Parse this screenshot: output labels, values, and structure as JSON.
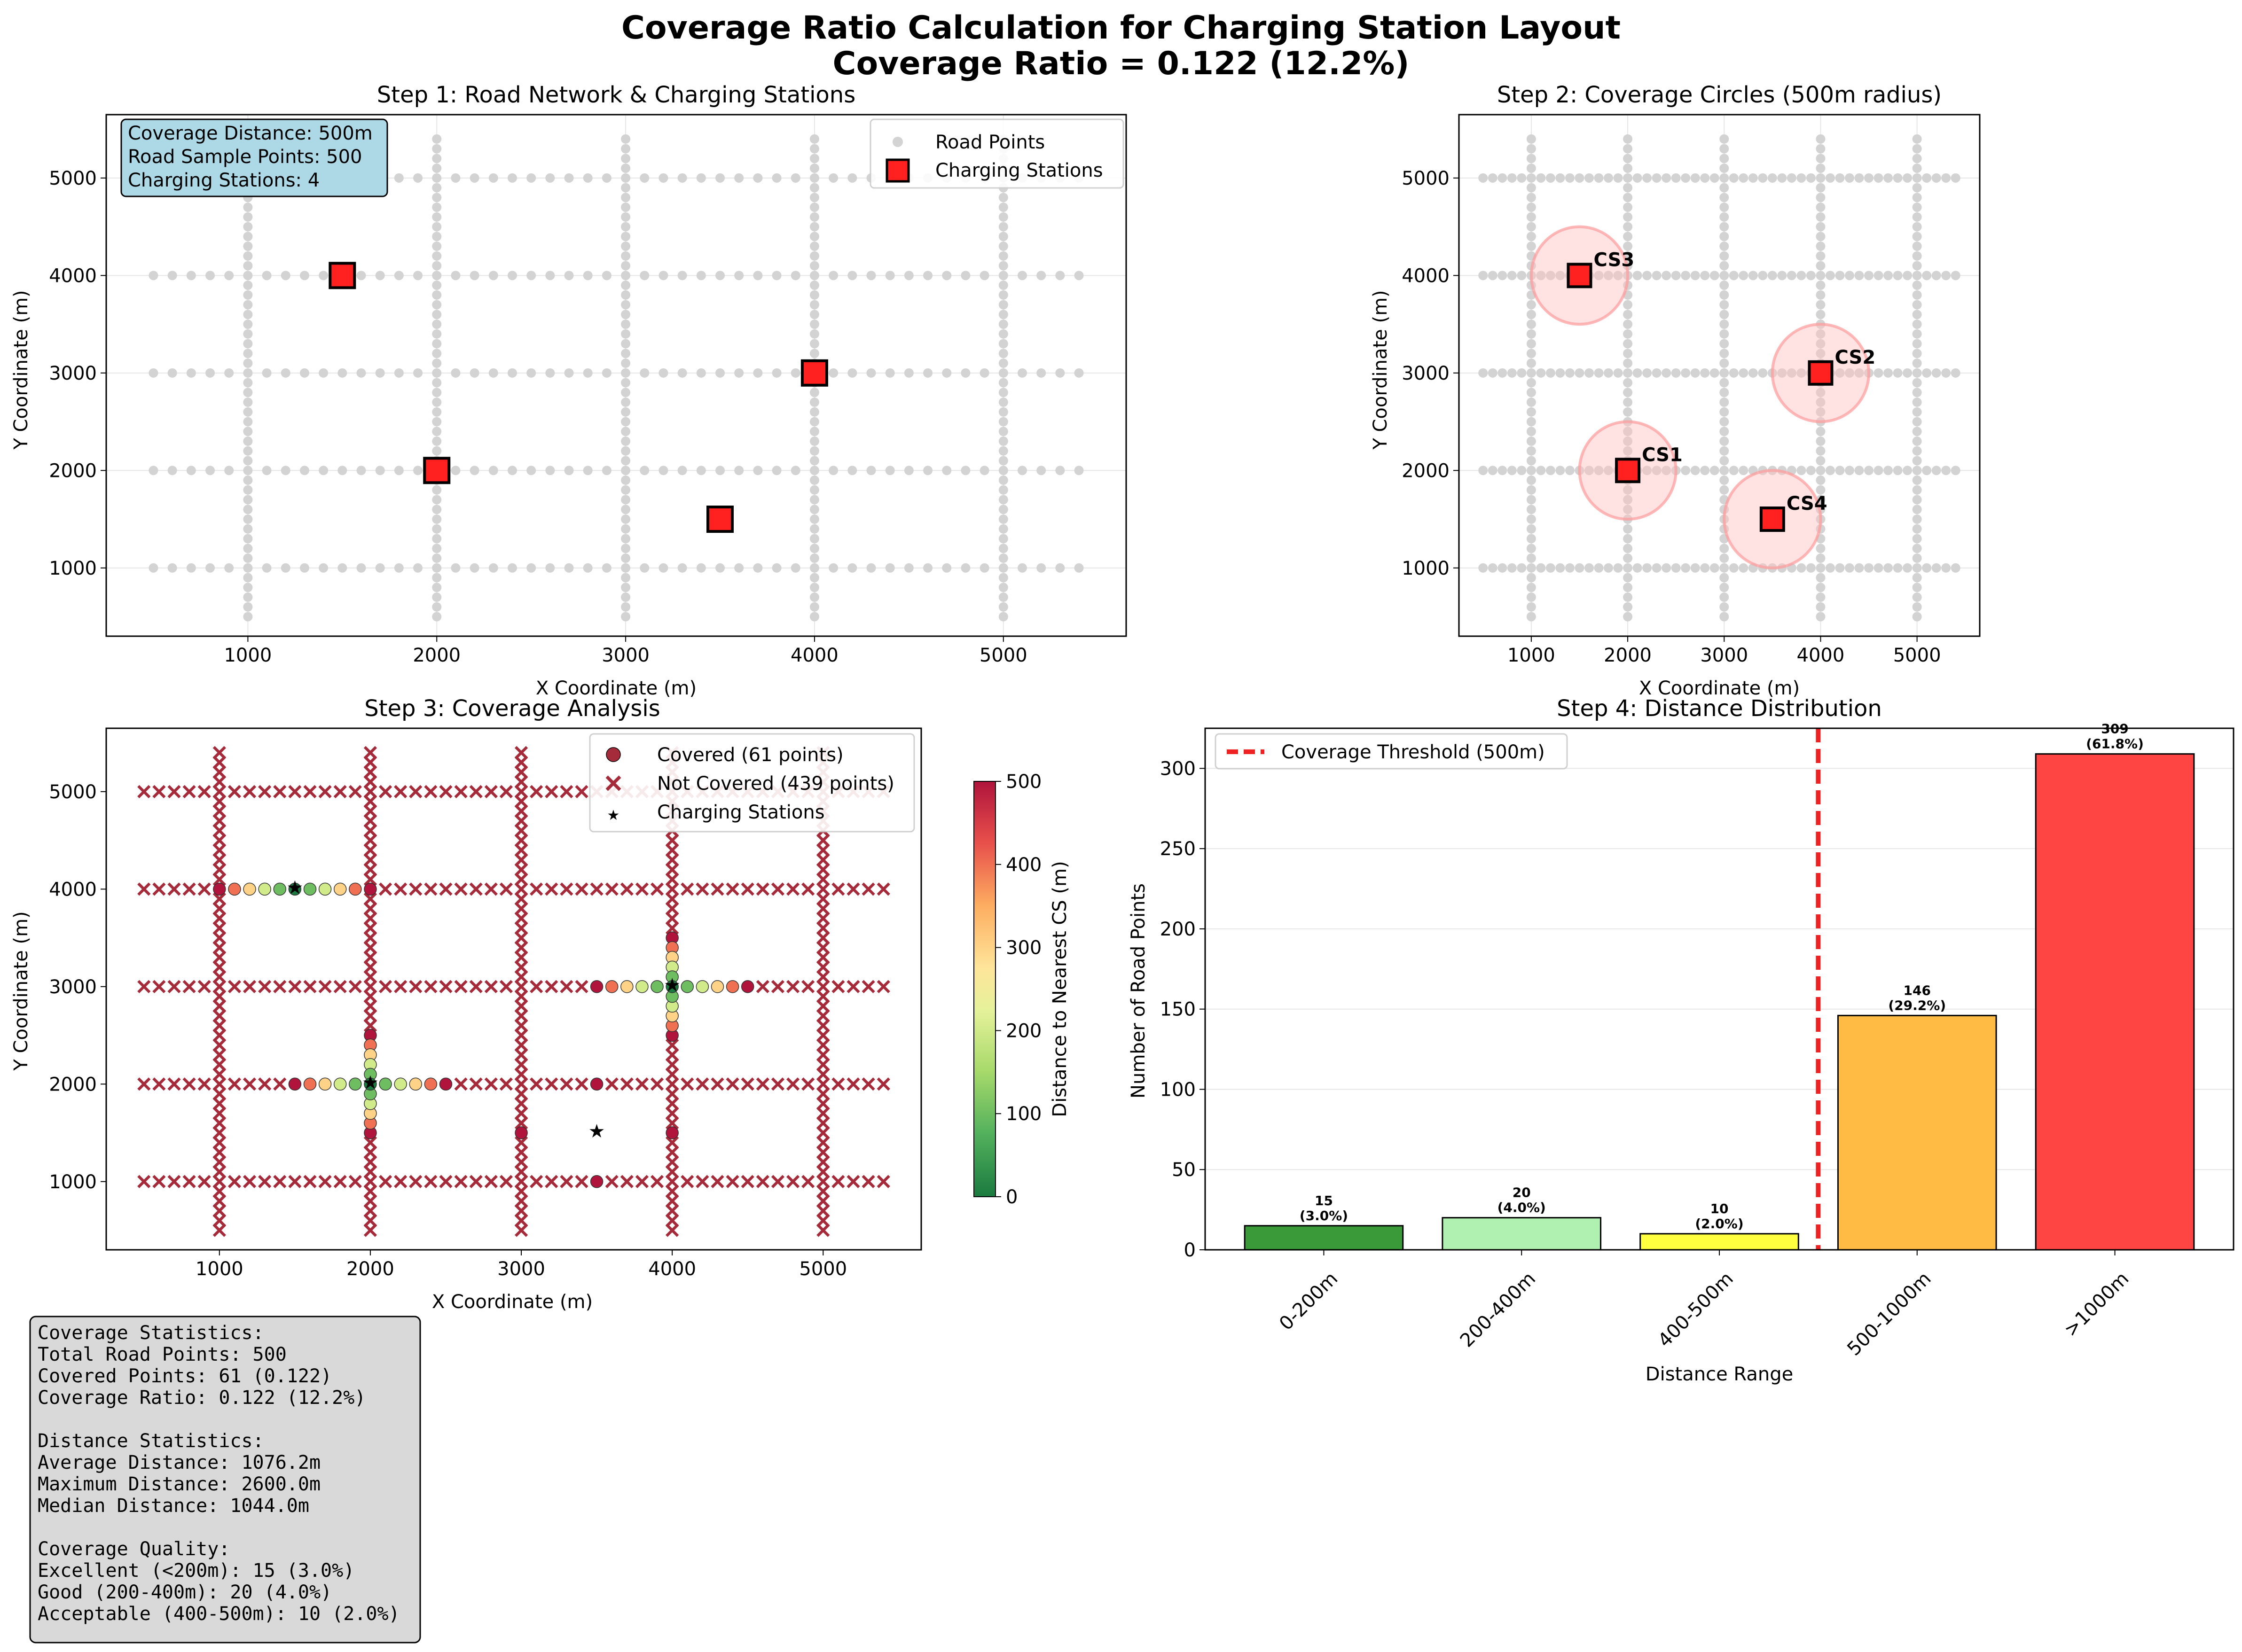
{
  "suptitle": [
    "Coverage Ratio Calculation for Charging Station Layout",
    "Coverage Ratio = 0.122 (12.2%)"
  ],
  "colors": {
    "road": "#d3d3d3",
    "station": "#ff2020",
    "covered": "#a52a3a",
    "notcovered": "#a52a3a",
    "star": "#0000ff",
    "circle": "#ffb3b3",
    "infobox": "#add8e6",
    "statsbox": "#d9d9d9",
    "threshold": "#ee2222"
  },
  "chart_data": [
    {
      "type": "scatter",
      "title": "Step 1: Road Network & Charging Stations",
      "xlabel": "X Coordinate (m)",
      "ylabel": "Y Coordinate (m)",
      "xlim": [
        250,
        5650
      ],
      "ylim": [
        300,
        5650
      ],
      "xticks": [
        1000,
        2000,
        3000,
        4000,
        5000
      ],
      "yticks": [
        1000,
        2000,
        3000,
        4000,
        5000
      ],
      "grid": true,
      "road_grid": {
        "horizontal_y": [
          1000,
          2000,
          3000,
          4000,
          5000
        ],
        "vertical_x": [
          1000,
          2000,
          3000,
          4000,
          5000
        ],
        "extent": [
          500,
          5400
        ],
        "step": 100
      },
      "stations": [
        {
          "x": 1500,
          "y": 4000
        },
        {
          "x": 2000,
          "y": 2000
        },
        {
          "x": 4000,
          "y": 3000
        },
        {
          "x": 3500,
          "y": 1500
        }
      ],
      "legend": {
        "placement": "upper right",
        "entries": [
          "Road Points",
          "Charging Stations"
        ]
      },
      "infobox": [
        "Coverage Distance: 500m",
        "Road Sample Points: 500",
        "Charging Stations: 4"
      ]
    },
    {
      "type": "scatter",
      "title": "Step 2: Coverage Circles (500m radius)",
      "xlabel": "X Coordinate (m)",
      "ylabel": "Y Coordinate (m)",
      "xlim": [
        250,
        5650
      ],
      "ylim": [
        300,
        5650
      ],
      "xticks": [
        1000,
        2000,
        3000,
        4000,
        5000
      ],
      "yticks": [
        1000,
        2000,
        3000,
        4000,
        5000
      ],
      "radius": 500,
      "stations": [
        {
          "label": "CS1",
          "x": 2000,
          "y": 2000
        },
        {
          "label": "CS2",
          "x": 4000,
          "y": 3000
        },
        {
          "label": "CS3",
          "x": 1500,
          "y": 4000
        },
        {
          "label": "CS4",
          "x": 3500,
          "y": 1500
        }
      ]
    },
    {
      "type": "scatter",
      "title": "Step 3: Coverage Analysis",
      "xlabel": "X Coordinate (m)",
      "ylabel": "Y Coordinate (m)",
      "xlim": [
        250,
        5650
      ],
      "ylim": [
        300,
        5650
      ],
      "xticks": [
        1000,
        2000,
        3000,
        4000,
        5000
      ],
      "yticks": [
        1000,
        2000,
        3000,
        4000,
        5000
      ],
      "legend": {
        "placement": "upper right",
        "entries": [
          "Covered (61 points)",
          "Not Covered (439 points)",
          "Charging Stations"
        ]
      },
      "colorbar": {
        "label": "Distance to Nearest CS (m)",
        "range": [
          0,
          500
        ],
        "ticks": [
          0,
          100,
          200,
          300,
          400,
          500
        ]
      },
      "stations": [
        {
          "x": 1500,
          "y": 4000
        },
        {
          "x": 2000,
          "y": 2000
        },
        {
          "x": 4000,
          "y": 3000
        },
        {
          "x": 3500,
          "y": 1500
        }
      ]
    },
    {
      "type": "bar",
      "title": "Step 4: Distance Distribution",
      "xlabel": "Distance Range",
      "ylabel": "Number of Road Points",
      "categories": [
        "0-200m",
        "200-400m",
        "400-500m",
        "500-1000m",
        ">1000m"
      ],
      "values": [
        15,
        20,
        10,
        146,
        309
      ],
      "bar_labels": [
        [
          "15",
          "(3.0%)"
        ],
        [
          "20",
          "(4.0%)"
        ],
        [
          "10",
          "(2.0%)"
        ],
        [
          "146",
          "(29.2%)"
        ],
        [
          "309",
          "(61.8%)"
        ]
      ],
      "bar_colors": [
        "#3a9a3a",
        "#b0f0b0",
        "#ffff40",
        "#ffbb44",
        "#ff4444"
      ],
      "ylim": [
        0,
        325
      ],
      "yticks": [
        0,
        50,
        100,
        150,
        200,
        250,
        300
      ],
      "threshold": {
        "position": 2.5,
        "label": "Coverage Threshold (500m)"
      },
      "legend": {
        "placement": "upper left"
      }
    }
  ],
  "stats": [
    "Coverage Statistics:",
    "Total Road Points: 500",
    "Covered Points: 61 (0.122)",
    "Coverage Ratio: 0.122 (12.2%)",
    "",
    "Distance Statistics:",
    "Average Distance: 1076.2m",
    "Maximum Distance: 2600.0m",
    "Median Distance: 1044.0m",
    "",
    "Coverage Quality:",
    "Excellent (<200m): 15 (3.0%)",
    "Good (200-400m): 20 (4.0%)",
    "Acceptable (400-500m): 10 (2.0%)"
  ]
}
